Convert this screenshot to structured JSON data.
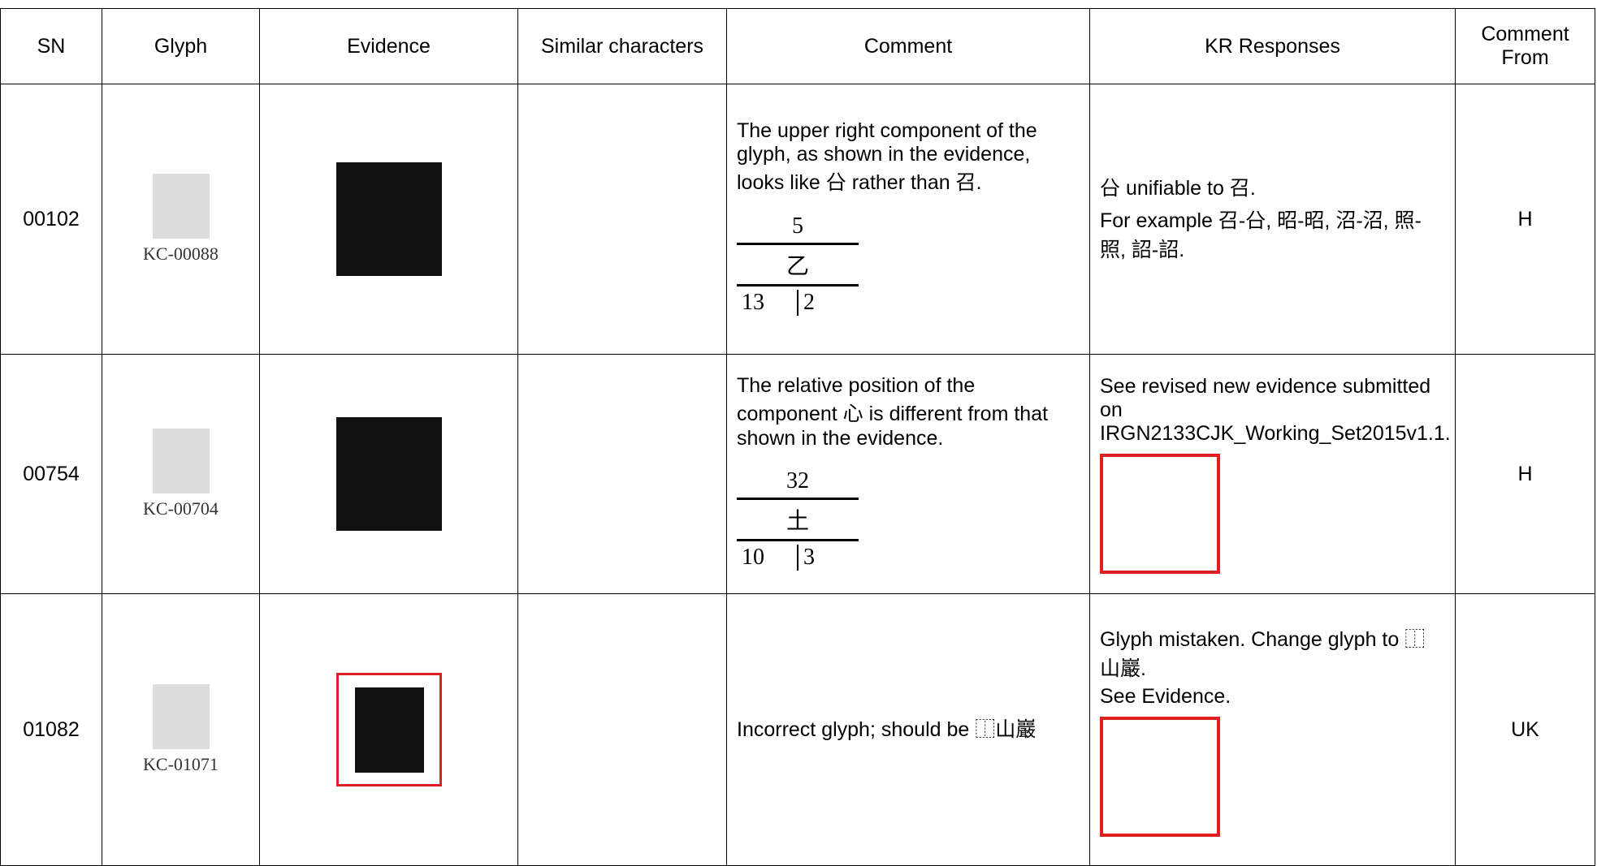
{
  "table": {
    "columns": [
      "SN",
      "Glyph",
      "Evidence",
      "Similar characters",
      "Comment",
      "KR Responses",
      "Comment From"
    ],
    "rows": [
      {
        "sn": "00102",
        "glyph_source": "KC-00088",
        "comment": [
          "The upper right component of the glyph, as shown in the evidence, looks like 㕣 rather than 召."
        ],
        "radical": {
          "number": "5",
          "char": "乙",
          "strokes": "13",
          "extra": "2"
        },
        "responses": [
          "㕣 unifiable to 召.",
          "For example 召-㕣, 昭-昭, 沼-沼, 照-照, 詔-詔."
        ],
        "from": "H"
      },
      {
        "sn": "00754",
        "glyph_source": "KC-00704",
        "comment": [
          "The relative position of the component 心 is different from that shown in the evidence."
        ],
        "radical": {
          "number": "32",
          "char": "土",
          "strokes": "10",
          "extra": "3"
        },
        "responses": [
          "See revised new evidence submitted on IRGN2133CJK_Working_Set2015v1.1."
        ],
        "from": "H"
      },
      {
        "sn": "01082",
        "glyph_source": "KC-01071",
        "comment": [
          "Incorrect glyph; should be ⿰山巖"
        ],
        "responses": [
          "Glyph mistaken. Change glyph to ⿰山巖.",
          "See Evidence."
        ],
        "from": "UK"
      }
    ]
  }
}
